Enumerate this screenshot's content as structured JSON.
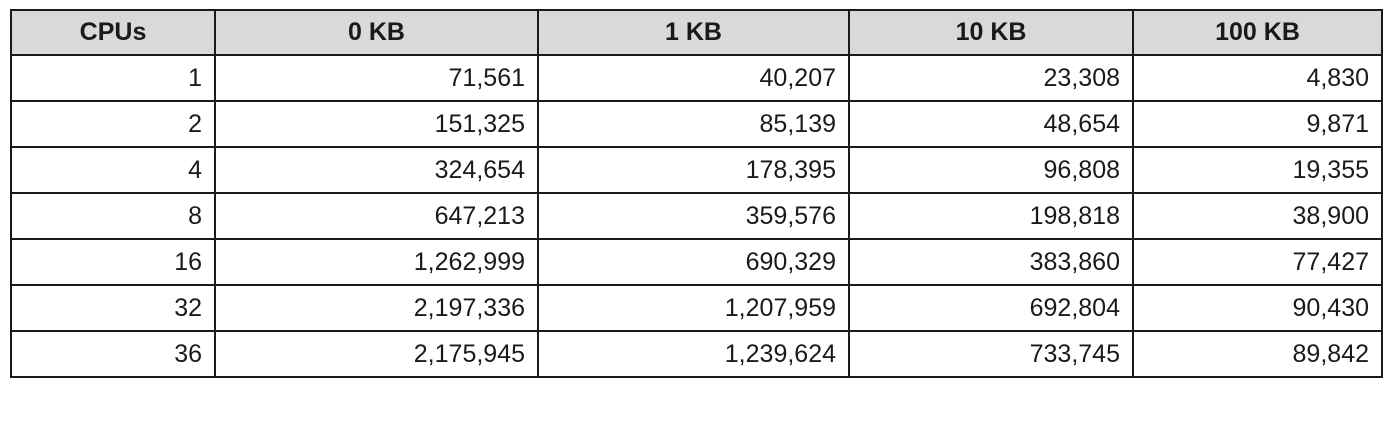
{
  "table": {
    "headers": [
      "CPUs",
      "0 KB",
      "1 KB",
      "10 KB",
      "100 KB"
    ],
    "rows": [
      [
        "1",
        "71,561",
        "40,207",
        "23,308",
        "4,830"
      ],
      [
        "2",
        "151,325",
        "85,139",
        "48,654",
        "9,871"
      ],
      [
        "4",
        "324,654",
        "178,395",
        "96,808",
        "19,355"
      ],
      [
        "8",
        "647,213",
        "359,576",
        "198,818",
        "38,900"
      ],
      [
        "16",
        "1,262,999",
        "690,329",
        "383,860",
        "77,427"
      ],
      [
        "32",
        "2,197,336",
        "1,207,959",
        "692,804",
        "90,430"
      ],
      [
        "36",
        "2,175,945",
        "1,239,624",
        "733,745",
        "89,842"
      ]
    ]
  },
  "colors": {
    "header_background": "#d9d9d9",
    "border": "#1a1a1a",
    "text": "#1a1a1a",
    "background": "#ffffff"
  }
}
